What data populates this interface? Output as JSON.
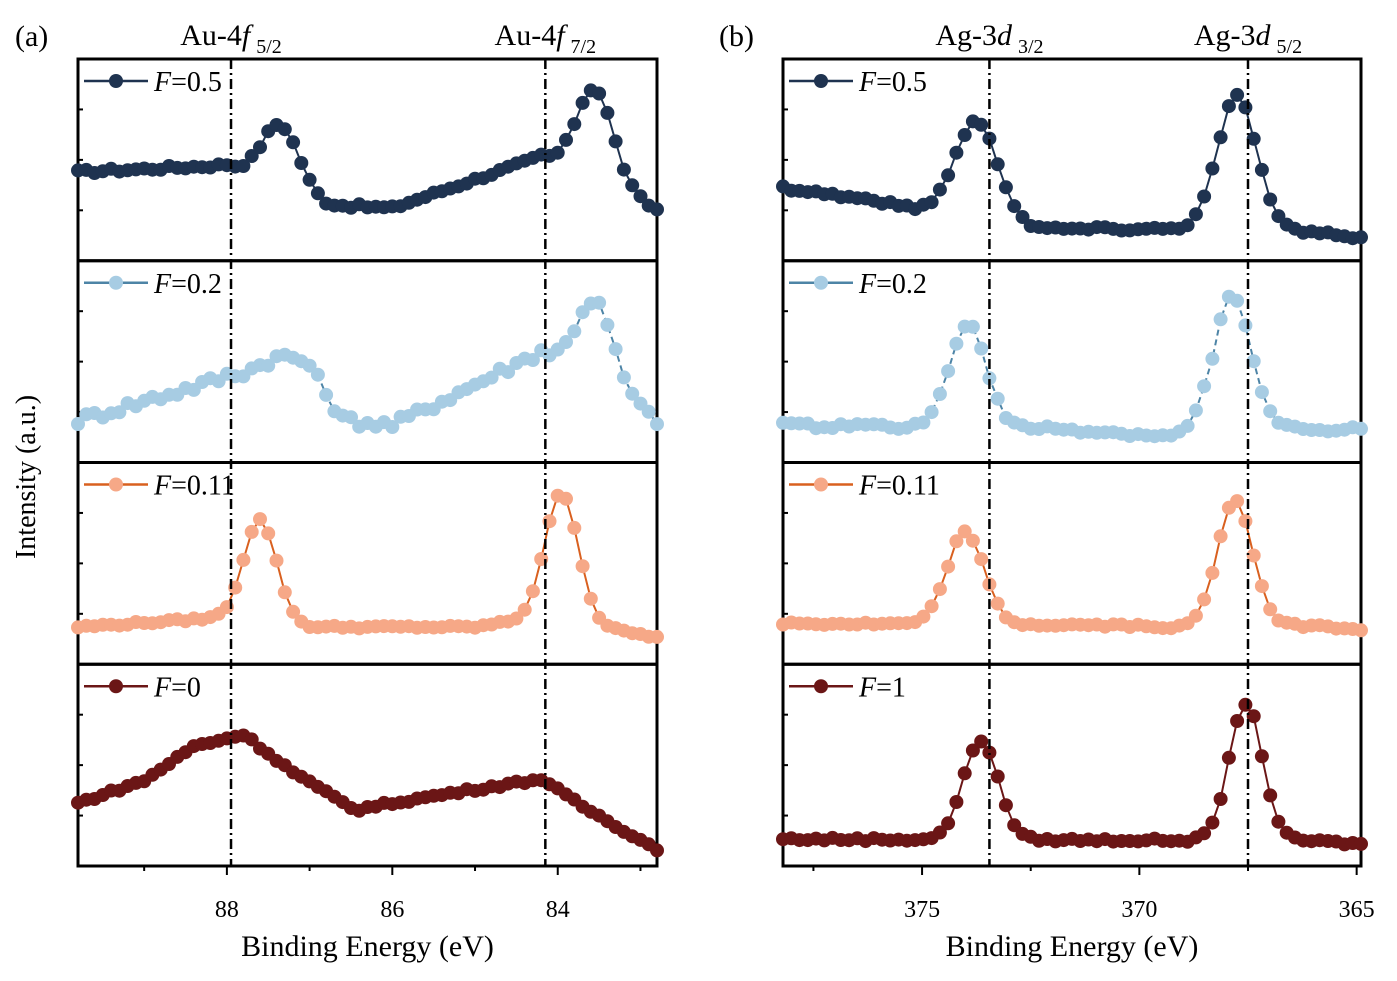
{
  "y_axis_label": "Intensity (a.u.)",
  "chart_data": [
    {
      "type": "scatter-line",
      "panel_label": "(a)",
      "xlabel": "Binding Energy (eV)",
      "ylabel": "Intensity (a.u.)",
      "xlim": [
        89.8,
        82.8
      ],
      "x_reversed": true,
      "xticks": [
        88,
        86,
        84
      ],
      "xtick_labels": [
        "88",
        "86",
        "84"
      ],
      "minor_xticks": [
        89,
        87,
        85,
        83
      ],
      "reference_lines": [
        {
          "x": 87.95,
          "label_main": "Au-4",
          "label_italic": "f",
          "label_sub": "5/2"
        },
        {
          "x": 84.15,
          "label_main": "Au-4",
          "label_italic": "f",
          "label_sub": "7/2"
        }
      ],
      "series": [
        {
          "name": "F=0.5",
          "legend_italic": "F",
          "legend_rest": "=0.5",
          "marker_color": "#1f3350",
          "line_color": "#1f3350",
          "dashed": false,
          "peaks": [
            {
              "center": 87.35,
              "height": 0.36,
              "width": 0.22
            },
            {
              "center": 83.55,
              "height": 0.54,
              "width": 0.22
            }
          ],
          "base_points": [
            [
              89.8,
              0.47
            ],
            [
              88.0,
              0.51
            ],
            [
              86.8,
              0.28
            ],
            [
              86.0,
              0.26
            ],
            [
              84.2,
              0.56
            ],
            [
              82.8,
              0.25
            ]
          ],
          "noise": 0.012
        },
        {
          "name": "F=0.2",
          "legend_italic": "F",
          "legend_rest": "=0.2",
          "marker_color": "#a7cce3",
          "line_color": "#4d84a6",
          "dashed": true,
          "peaks": [
            {
              "center": 87.3,
              "height": 0.12,
              "width": 0.3
            },
            {
              "center": 83.55,
              "height": 0.48,
              "width": 0.22
            }
          ],
          "base_points": [
            [
              89.8,
              0.2
            ],
            [
              88.0,
              0.45
            ],
            [
              87.0,
              0.45
            ],
            [
              86.6,
              0.2
            ],
            [
              86.0,
              0.17
            ],
            [
              84.2,
              0.6
            ],
            [
              82.8,
              0.2
            ]
          ],
          "noise": 0.03
        },
        {
          "name": "F=0.11",
          "legend_italic": "F",
          "legend_rest": "=0.11",
          "marker_color": "#f6a887",
          "line_color": "#d9601f",
          "dashed": false,
          "peaks": [
            {
              "center": 87.6,
              "height": 0.6,
              "width": 0.2
            },
            {
              "center": 83.95,
              "height": 0.74,
              "width": 0.2
            }
          ],
          "base_points": [
            [
              89.8,
              0.17
            ],
            [
              88.2,
              0.22
            ],
            [
              87.0,
              0.17
            ],
            [
              85.0,
              0.17
            ],
            [
              84.2,
              0.23
            ],
            [
              82.8,
              0.11
            ]
          ],
          "noise": 0.008
        },
        {
          "name": "F=0",
          "legend_italic": "F",
          "legend_rest": "=0",
          "marker_color": "#6b1616",
          "line_color": "#6b1616",
          "dashed": false,
          "peaks": [],
          "base_points": [
            [
              89.8,
              0.32
            ],
            [
              89.0,
              0.45
            ],
            [
              88.4,
              0.65
            ],
            [
              87.8,
              0.72
            ],
            [
              87.2,
              0.5
            ],
            [
              86.8,
              0.38
            ],
            [
              86.45,
              0.28
            ],
            [
              86.0,
              0.32
            ],
            [
              85.0,
              0.4
            ],
            [
              84.2,
              0.46
            ],
            [
              83.7,
              0.3
            ],
            [
              82.8,
              0.05
            ]
          ],
          "noise": 0.01
        }
      ]
    },
    {
      "type": "scatter-line",
      "panel_label": "(b)",
      "xlabel": "Binding Energy (eV)",
      "ylabel": "Intensity (a.u.)",
      "xlim": [
        378.2,
        364.9
      ],
      "x_reversed": true,
      "xticks": [
        375,
        370,
        365
      ],
      "xtick_labels": [
        "375",
        "370",
        "365"
      ],
      "minor_xticks": [
        377.5,
        372.5,
        367.5
      ],
      "reference_lines": [
        {
          "x": 373.45,
          "label_main": "Ag-3",
          "label_italic": "d",
          "label_sub": "3/2"
        },
        {
          "x": 367.5,
          "label_main": "Ag-3",
          "label_italic": "d",
          "label_sub": "5/2"
        }
      ],
      "series": [
        {
          "name": "F=0.5",
          "legend_italic": "F",
          "legend_rest": "=0.5",
          "marker_color": "#1f3350",
          "line_color": "#1f3350",
          "dashed": false,
          "peaks": [
            {
              "center": 373.75,
              "height": 0.58,
              "width": 0.5
            },
            {
              "center": 367.75,
              "height": 0.78,
              "width": 0.45
            }
          ],
          "base_points": [
            [
              378.2,
              0.38
            ],
            [
              376.0,
              0.3
            ],
            [
              374.2,
              0.2
            ],
            [
              372.5,
              0.14
            ],
            [
              371.0,
              0.14
            ],
            [
              369.0,
              0.14
            ],
            [
              366.0,
              0.12
            ],
            [
              364.9,
              0.08
            ]
          ],
          "noise": 0.012
        },
        {
          "name": "F=0.2",
          "legend_italic": "F",
          "legend_rest": "=0.2",
          "marker_color": "#a7cce3",
          "line_color": "#4d84a6",
          "dashed": true,
          "peaks": [
            {
              "center": 373.95,
              "height": 0.6,
              "width": 0.42
            },
            {
              "center": 367.85,
              "height": 0.75,
              "width": 0.4
            }
          ],
          "base_points": [
            [
              378.2,
              0.17
            ],
            [
              372.0,
              0.15
            ],
            [
              369.2,
              0.1
            ],
            [
              368.5,
              0.2
            ],
            [
              366.0,
              0.14
            ],
            [
              364.9,
              0.15
            ]
          ],
          "noise": 0.015
        },
        {
          "name": "F=0.11",
          "legend_italic": "F",
          "legend_rest": "=0.11",
          "marker_color": "#f6a887",
          "line_color": "#d9601f",
          "dashed": false,
          "peaks": [
            {
              "center": 374.0,
              "height": 0.54,
              "width": 0.42
            },
            {
              "center": 367.8,
              "height": 0.74,
              "width": 0.4
            }
          ],
          "base_points": [
            [
              378.2,
              0.19
            ],
            [
              371.0,
              0.18
            ],
            [
              368.8,
              0.17
            ],
            [
              366.0,
              0.18
            ],
            [
              364.9,
              0.16
            ]
          ],
          "noise": 0.01
        },
        {
          "name": "F=1",
          "legend_italic": "F",
          "legend_rest": "=1",
          "marker_color": "#6b1616",
          "line_color": "#6b1616",
          "dashed": false,
          "peaks": [
            {
              "center": 373.65,
              "height": 0.58,
              "width": 0.4
            },
            {
              "center": 367.55,
              "height": 0.8,
              "width": 0.38
            }
          ],
          "base_points": [
            [
              378.2,
              0.11
            ],
            [
              366.0,
              0.1
            ],
            [
              364.9,
              0.08
            ]
          ],
          "noise": 0.01
        }
      ]
    }
  ]
}
